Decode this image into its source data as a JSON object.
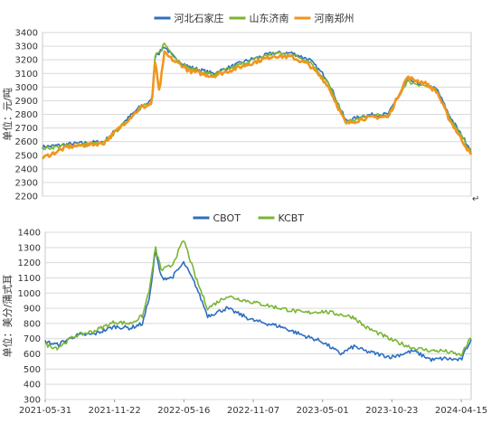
{
  "chart_data": [
    {
      "type": "line",
      "ylabel": "单位：元/吨",
      "ylim": [
        2200,
        3400
      ],
      "yticks": [
        2200,
        2300,
        2400,
        2500,
        2600,
        2700,
        2800,
        2900,
        3000,
        3100,
        3200,
        3300,
        3400
      ],
      "grid": true,
      "legend": "top-center",
      "x": [
        "2021-05-31",
        "2021-08-01",
        "2021-11-01",
        "2022-02-01",
        "2022-02-15",
        "2022-03-01",
        "2022-03-10",
        "2022-03-20",
        "2022-04-01",
        "2022-05-01",
        "2022-05-16",
        "2022-06-01",
        "2022-08-01",
        "2022-11-01",
        "2023-01-01",
        "2023-02-15",
        "2023-04-01",
        "2023-05-15",
        "2023-07-01",
        "2023-08-15",
        "2023-09-15",
        "2023-10-15",
        "2023-12-01",
        "2024-01-15",
        "2024-02-15",
        "2024-03-15",
        "2024-04-15",
        "2024-05-10"
      ],
      "series": [
        {
          "name": "河北石家庄",
          "color": "#2e6fbf",
          "values": [
            2560,
            2580,
            2600,
            2860,
            2880,
            2900,
            3250,
            3250,
            3300,
            3200,
            3180,
            3150,
            3100,
            3200,
            3250,
            3250,
            3200,
            3060,
            2750,
            2790,
            2800,
            2800,
            3050,
            3020,
            2980,
            2800,
            2650,
            2540
          ]
        },
        {
          "name": "山东济南",
          "color": "#7ab532",
          "values": [
            2550,
            2570,
            2590,
            2850,
            2870,
            2880,
            3240,
            3250,
            3320,
            3210,
            3170,
            3140,
            3090,
            3190,
            3250,
            3240,
            3190,
            3040,
            2740,
            2780,
            2790,
            2790,
            3040,
            3010,
            2970,
            2790,
            2640,
            2520
          ]
        },
        {
          "name": "河南郑州",
          "color": "#f0961e",
          "values": [
            2480,
            2560,
            2590,
            2850,
            2860,
            2880,
            3200,
            2950,
            3250,
            3180,
            3160,
            3120,
            3080,
            3170,
            3230,
            3220,
            3160,
            3020,
            2730,
            2770,
            2780,
            2780,
            3070,
            3030,
            2960,
            2770,
            2620,
            2500
          ]
        }
      ]
    },
    {
      "type": "line",
      "ylabel": "单位：美分/蒲式耳",
      "ylim": [
        300,
        1400
      ],
      "yticks": [
        300,
        400,
        500,
        600,
        700,
        800,
        900,
        1000,
        1100,
        1200,
        1300,
        1400
      ],
      "grid": true,
      "legend": "top-center",
      "xticks": [
        "2021-05-31",
        "2021-11-22",
        "2022-05-16",
        "2022-11-07",
        "2023-05-01",
        "2023-10-23",
        "2024-04-15"
      ],
      "x": [
        "2021-05-31",
        "2021-07-01",
        "2021-08-15",
        "2021-10-01",
        "2021-11-22",
        "2022-01-01",
        "2022-02-01",
        "2022-02-20",
        "2022-03-05",
        "2022-03-20",
        "2022-04-15",
        "2022-05-16",
        "2022-06-15",
        "2022-07-15",
        "2022-09-01",
        "2022-11-07",
        "2023-01-15",
        "2023-03-15",
        "2023-05-01",
        "2023-06-15",
        "2023-07-20",
        "2023-08-15",
        "2023-10-01",
        "2023-10-23",
        "2023-12-15",
        "2024-02-01",
        "2024-03-01",
        "2024-04-15",
        "2024-05-10"
      ],
      "series": [
        {
          "name": "CBOT",
          "color": "#2e6fbf",
          "values": [
            680,
            660,
            720,
            730,
            780,
            770,
            800,
            1000,
            1280,
            1100,
            1100,
            1200,
            1050,
            850,
            900,
            820,
            780,
            720,
            680,
            600,
            650,
            620,
            590,
            580,
            620,
            560,
            570,
            560,
            700
          ]
        },
        {
          "name": "KCBT",
          "color": "#7ab532",
          "values": [
            660,
            640,
            720,
            750,
            810,
            800,
            850,
            1050,
            1300,
            1150,
            1180,
            1350,
            1100,
            900,
            980,
            940,
            900,
            870,
            880,
            860,
            840,
            780,
            720,
            690,
            640,
            620,
            620,
            590,
            710
          ]
        }
      ]
    }
  ]
}
